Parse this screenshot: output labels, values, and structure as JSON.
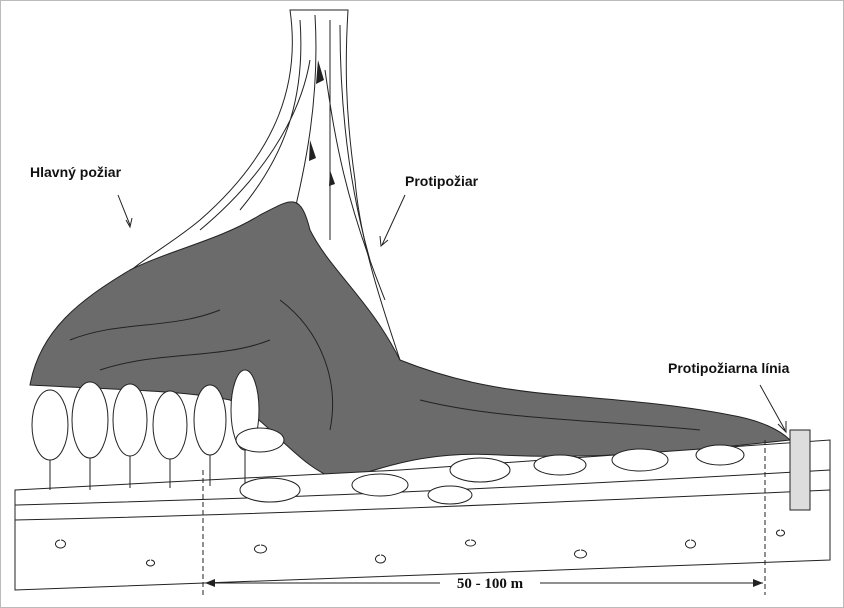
{
  "labels": {
    "main_fire": "Hlavný požiar",
    "counter_fire": "Protipožiar",
    "fire_line": "Protipožiarna línia"
  },
  "scale": {
    "label": "50 - 100 m"
  }
}
